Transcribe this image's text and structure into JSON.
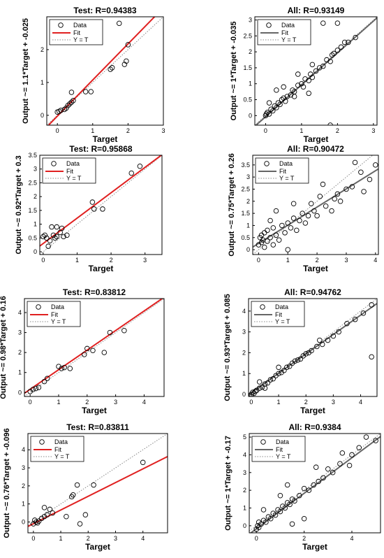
{
  "colors": {
    "fit_test": "#e02020",
    "fit_all": "#666666",
    "data": "#000000",
    "yeqt": "#888888"
  },
  "legend": {
    "data": "Data",
    "fit": "Fit",
    "yeqt": "Y = T"
  },
  "chart_data": [
    {
      "type": "scatter",
      "title": "Test: R=0.94383",
      "xlabel": "Target",
      "ylabel": "Output ~= 1.1*Target + -0.025",
      "xlim": [
        -0.3,
        3
      ],
      "ylim": [
        -0.3,
        3
      ],
      "xticks": [
        0,
        1,
        2,
        3
      ],
      "yticks": [
        0,
        1,
        2
      ],
      "fit": {
        "slope": 1.1,
        "intercept": -0.025
      },
      "grid": false,
      "legend_position": "top-left",
      "points": [
        [
          0.0,
          0.1
        ],
        [
          0.05,
          0.12
        ],
        [
          0.1,
          0.15
        ],
        [
          0.2,
          0.18
        ],
        [
          0.25,
          0.22
        ],
        [
          0.3,
          0.3
        ],
        [
          0.35,
          0.35
        ],
        [
          0.4,
          0.4
        ],
        [
          0.45,
          0.45
        ],
        [
          0.4,
          0.7
        ],
        [
          0.8,
          0.72
        ],
        [
          0.95,
          0.72
        ],
        [
          1.5,
          1.4
        ],
        [
          1.55,
          1.45
        ],
        [
          1.75,
          2.8
        ],
        [
          1.9,
          1.55
        ],
        [
          1.95,
          1.65
        ],
        [
          2.0,
          2.15
        ]
      ]
    },
    {
      "type": "scatter",
      "title": "All: R=0.93149",
      "xlabel": "Target",
      "ylabel": "Output ~= 1*Target + -0.035",
      "xlim": [
        -0.3,
        3.1
      ],
      "ylim": [
        -0.3,
        3.1
      ],
      "xticks": [
        0,
        1,
        2,
        3
      ],
      "yticks": [
        0,
        0.5,
        1,
        1.5,
        2,
        2.5,
        3
      ],
      "fit": {
        "slope": 1,
        "intercept": -0.035
      },
      "grid": false,
      "legend_position": "top-left",
      "points": [
        [
          0.0,
          0.0
        ],
        [
          0.02,
          0.05
        ],
        [
          0.05,
          0.1
        ],
        [
          0.1,
          0.05
        ],
        [
          0.15,
          0.2
        ],
        [
          0.2,
          0.15
        ],
        [
          0.25,
          0.3
        ],
        [
          0.3,
          0.25
        ],
        [
          0.35,
          0.4
        ],
        [
          0.4,
          0.35
        ],
        [
          0.45,
          0.5
        ],
        [
          0.5,
          0.55
        ],
        [
          0.55,
          0.45
        ],
        [
          0.6,
          0.6
        ],
        [
          0.7,
          0.65
        ],
        [
          0.75,
          0.8
        ],
        [
          0.8,
          0.75
        ],
        [
          0.9,
          0.95
        ],
        [
          1.0,
          1.0
        ],
        [
          1.05,
          0.9
        ],
        [
          1.1,
          1.15
        ],
        [
          1.2,
          1.1
        ],
        [
          1.25,
          1.3
        ],
        [
          1.3,
          1.2
        ],
        [
          1.4,
          1.4
        ],
        [
          1.5,
          1.5
        ],
        [
          1.6,
          1.55
        ],
        [
          1.7,
          1.75
        ],
        [
          1.8,
          1.7
        ],
        [
          1.85,
          1.9
        ],
        [
          1.9,
          1.95
        ],
        [
          2.0,
          2.05
        ],
        [
          2.1,
          2.15
        ],
        [
          2.2,
          2.3
        ],
        [
          2.3,
          2.3
        ],
        [
          2.5,
          2.45
        ],
        [
          0.3,
          0.8
        ],
        [
          0.5,
          0.9
        ],
        [
          0.8,
          0.6
        ],
        [
          1.2,
          0.7
        ],
        [
          1.6,
          2.9
        ],
        [
          1.8,
          -0.3
        ],
        [
          2.0,
          2.9
        ],
        [
          0.1,
          0.4
        ],
        [
          1.3,
          1.6
        ],
        [
          0.9,
          1.3
        ]
      ]
    },
    {
      "type": "scatter",
      "title": "Test: R=0.95868",
      "xlabel": "Target",
      "ylabel": "Output ~= 0.92*Target + 0.3",
      "xlim": [
        -0.1,
        3.5
      ],
      "ylim": [
        -0.1,
        3.5
      ],
      "xticks": [
        0,
        1,
        2,
        3
      ],
      "yticks": [
        0,
        0.5,
        1,
        1.5,
        2,
        2.5,
        3,
        3.5
      ],
      "fit": {
        "slope": 0.92,
        "intercept": 0.3
      },
      "grid": false,
      "legend_position": "top-left",
      "points": [
        [
          0.0,
          0.55
        ],
        [
          0.05,
          0.6
        ],
        [
          0.1,
          0.5
        ],
        [
          0.15,
          0.2
        ],
        [
          0.2,
          0.4
        ],
        [
          0.25,
          0.9
        ],
        [
          0.3,
          0.6
        ],
        [
          0.35,
          0.5
        ],
        [
          0.4,
          0.55
        ],
        [
          0.4,
          0.9
        ],
        [
          0.5,
          0.7
        ],
        [
          0.55,
          0.85
        ],
        [
          0.6,
          0.55
        ],
        [
          0.7,
          0.6
        ],
        [
          1.45,
          1.8
        ],
        [
          1.5,
          1.55
        ],
        [
          1.75,
          1.55
        ],
        [
          2.6,
          2.85
        ],
        [
          2.85,
          3.1
        ]
      ]
    },
    {
      "type": "scatter",
      "title": "All: R=0.90472",
      "xlabel": "Target",
      "ylabel": "Output ~= 0.75*Target + 0.26",
      "xlim": [
        -0.2,
        4.1
      ],
      "ylim": [
        -0.2,
        3.9
      ],
      "xticks": [
        0,
        1,
        2,
        3,
        4
      ],
      "yticks": [
        0,
        0.5,
        1,
        1.5,
        2,
        2.5,
        3,
        3.5
      ],
      "fit": {
        "slope": 0.75,
        "intercept": 0.26
      },
      "grid": false,
      "legend_position": "top-left",
      "points": [
        [
          0.0,
          0.2
        ],
        [
          0.05,
          0.5
        ],
        [
          0.1,
          0.3
        ],
        [
          0.1,
          0.6
        ],
        [
          0.15,
          0.4
        ],
        [
          0.2,
          0.1
        ],
        [
          0.2,
          0.7
        ],
        [
          0.3,
          0.35
        ],
        [
          0.3,
          0.8
        ],
        [
          0.4,
          0.5
        ],
        [
          0.5,
          0.2
        ],
        [
          0.5,
          0.9
        ],
        [
          0.6,
          0.6
        ],
        [
          0.7,
          0.4
        ],
        [
          0.8,
          1.0
        ],
        [
          0.9,
          0.7
        ],
        [
          1.0,
          0.0
        ],
        [
          1.0,
          1.1
        ],
        [
          1.1,
          0.9
        ],
        [
          1.2,
          1.3
        ],
        [
          1.3,
          0.8
        ],
        [
          1.4,
          1.2
        ],
        [
          1.5,
          1.5
        ],
        [
          1.6,
          1.1
        ],
        [
          1.7,
          1.4
        ],
        [
          1.8,
          1.9
        ],
        [
          1.9,
          1.6
        ],
        [
          2.0,
          1.4
        ],
        [
          2.1,
          2.2
        ],
        [
          2.3,
          1.8
        ],
        [
          2.5,
          1.6
        ],
        [
          2.6,
          2.1
        ],
        [
          2.7,
          2.3
        ],
        [
          2.8,
          2.0
        ],
        [
          3.0,
          2.5
        ],
        [
          3.2,
          2.6
        ],
        [
          3.5,
          3.2
        ],
        [
          3.6,
          2.4
        ],
        [
          3.8,
          2.9
        ],
        [
          4.0,
          3.5
        ],
        [
          0.6,
          1.6
        ],
        [
          1.2,
          1.9
        ],
        [
          2.2,
          2.7
        ],
        [
          0.4,
          1.2
        ],
        [
          3.3,
          3.6
        ]
      ]
    },
    {
      "type": "scatter",
      "title": "Test: R=0.83812",
      "xlabel": "Target",
      "ylabel": "Output ~= 0.98*Target + 0.16",
      "xlim": [
        -0.2,
        4.7
      ],
      "ylim": [
        -0.2,
        4.7
      ],
      "xticks": [
        0,
        1,
        2,
        3,
        4
      ],
      "yticks": [
        0,
        1,
        2,
        3,
        4
      ],
      "fit": {
        "slope": 0.98,
        "intercept": 0.16
      },
      "grid": false,
      "legend_position": "top-left",
      "points": [
        [
          0.0,
          0.05
        ],
        [
          0.1,
          0.15
        ],
        [
          0.2,
          0.2
        ],
        [
          0.3,
          0.25
        ],
        [
          0.5,
          0.55
        ],
        [
          0.6,
          0.7
        ],
        [
          1.0,
          1.3
        ],
        [
          1.1,
          1.2
        ],
        [
          1.2,
          1.25
        ],
        [
          1.4,
          1.2
        ],
        [
          1.9,
          1.9
        ],
        [
          2.0,
          2.2
        ],
        [
          2.2,
          2.1
        ],
        [
          2.6,
          2.0
        ],
        [
          2.8,
          3.0
        ],
        [
          3.3,
          3.1
        ]
      ]
    },
    {
      "type": "scatter",
      "title": "All: R=0.94762",
      "xlabel": "Target",
      "ylabel": "Output ~= 0.93*Target + 0.085",
      "xlim": [
        -0.1,
        4.6
      ],
      "ylim": [
        -0.1,
        4.6
      ],
      "xticks": [
        0,
        1,
        2,
        3,
        4
      ],
      "yticks": [
        0,
        1,
        2,
        3,
        4
      ],
      "fit": {
        "slope": 0.93,
        "intercept": 0.085
      },
      "grid": false,
      "legend_position": "top-left",
      "points": [
        [
          0.0,
          0.0
        ],
        [
          0.05,
          0.1
        ],
        [
          0.1,
          0.05
        ],
        [
          0.15,
          0.15
        ],
        [
          0.2,
          0.2
        ],
        [
          0.3,
          0.3
        ],
        [
          0.4,
          0.35
        ],
        [
          0.5,
          0.5
        ],
        [
          0.6,
          0.55
        ],
        [
          0.7,
          0.7
        ],
        [
          0.8,
          0.75
        ],
        [
          0.9,
          0.9
        ],
        [
          1.0,
          1.0
        ],
        [
          1.1,
          1.05
        ],
        [
          1.2,
          1.15
        ],
        [
          1.3,
          1.3
        ],
        [
          1.4,
          1.35
        ],
        [
          1.5,
          1.5
        ],
        [
          1.6,
          1.6
        ],
        [
          1.7,
          1.65
        ],
        [
          1.8,
          1.7
        ],
        [
          1.9,
          1.85
        ],
        [
          2.0,
          1.95
        ],
        [
          2.1,
          2.0
        ],
        [
          2.2,
          2.1
        ],
        [
          2.4,
          2.3
        ],
        [
          2.6,
          2.4
        ],
        [
          2.8,
          2.6
        ],
        [
          3.0,
          2.8
        ],
        [
          3.2,
          3.0
        ],
        [
          3.5,
          3.4
        ],
        [
          3.8,
          3.6
        ],
        [
          4.1,
          3.9
        ],
        [
          4.4,
          4.3
        ],
        [
          4.4,
          1.8
        ],
        [
          0.3,
          0.6
        ],
        [
          0.5,
          0.3
        ],
        [
          1.0,
          1.3
        ],
        [
          2.5,
          2.6
        ]
      ]
    },
    {
      "type": "scatter",
      "title": "Test: R=0.83811",
      "xlabel": "Target",
      "ylabel": "Output ~= 0.76*Target + -0.096",
      "xlim": [
        -0.2,
        4.9
      ],
      "ylim": [
        -0.6,
        4.9
      ],
      "xticks": [
        0,
        1,
        2,
        3,
        4
      ],
      "yticks": [
        0,
        1,
        2,
        3,
        4
      ],
      "fit": {
        "slope": 0.76,
        "intercept": -0.096
      },
      "grid": false,
      "legend_position": "top-left",
      "points": [
        [
          0.0,
          -0.1
        ],
        [
          0.05,
          0.1
        ],
        [
          0.1,
          0.0
        ],
        [
          0.15,
          -0.05
        ],
        [
          0.2,
          0.05
        ],
        [
          0.3,
          0.2
        ],
        [
          0.4,
          0.3
        ],
        [
          0.4,
          0.8
        ],
        [
          0.5,
          0.4
        ],
        [
          0.6,
          0.7
        ],
        [
          0.7,
          0.5
        ],
        [
          1.2,
          0.3
        ],
        [
          1.4,
          1.4
        ],
        [
          1.45,
          1.5
        ],
        [
          1.6,
          2.05
        ],
        [
          1.7,
          -0.1
        ],
        [
          1.9,
          0.4
        ],
        [
          2.2,
          2.05
        ],
        [
          4.0,
          3.3
        ]
      ]
    },
    {
      "type": "scatter",
      "title": "All: R=0.9384",
      "xlabel": "Target",
      "ylabel": "Output ~= 1*Target + -0.17",
      "xlim": [
        -0.3,
        5.2
      ],
      "ylim": [
        -0.4,
        5.2
      ],
      "xticks": [
        0,
        2,
        4
      ],
      "yticks": [
        0,
        1,
        2,
        3,
        4,
        5
      ],
      "fit": {
        "slope": 1,
        "intercept": -0.17
      },
      "grid": false,
      "legend_position": "top-left",
      "points": [
        [
          0.0,
          -0.2
        ],
        [
          0.05,
          0.0
        ],
        [
          0.1,
          -0.1
        ],
        [
          0.1,
          0.2
        ],
        [
          0.2,
          0.1
        ],
        [
          0.3,
          0.3
        ],
        [
          0.4,
          0.2
        ],
        [
          0.5,
          0.5
        ],
        [
          0.6,
          0.4
        ],
        [
          0.7,
          0.7
        ],
        [
          0.8,
          0.6
        ],
        [
          0.9,
          0.9
        ],
        [
          1.0,
          0.8
        ],
        [
          1.1,
          1.1
        ],
        [
          1.2,
          1.0
        ],
        [
          1.3,
          1.3
        ],
        [
          1.4,
          1.2
        ],
        [
          1.5,
          1.5
        ],
        [
          1.6,
          1.4
        ],
        [
          1.8,
          1.7
        ],
        [
          2.0,
          2.1
        ],
        [
          2.2,
          2.0
        ],
        [
          2.4,
          2.3
        ],
        [
          2.6,
          2.5
        ],
        [
          2.8,
          2.7
        ],
        [
          3.0,
          3.2
        ],
        [
          3.2,
          3.0
        ],
        [
          3.5,
          3.5
        ],
        [
          3.6,
          4.1
        ],
        [
          4.0,
          4.0
        ],
        [
          4.3,
          4.4
        ],
        [
          4.6,
          5.0
        ],
        [
          5.0,
          4.8
        ],
        [
          2.5,
          3.3
        ],
        [
          3.9,
          3.4
        ],
        [
          1.3,
          2.3
        ],
        [
          0.3,
          0.9
        ],
        [
          1.0,
          1.7
        ],
        [
          2.0,
          0.4
        ],
        [
          1.5,
          0.1
        ]
      ]
    }
  ]
}
